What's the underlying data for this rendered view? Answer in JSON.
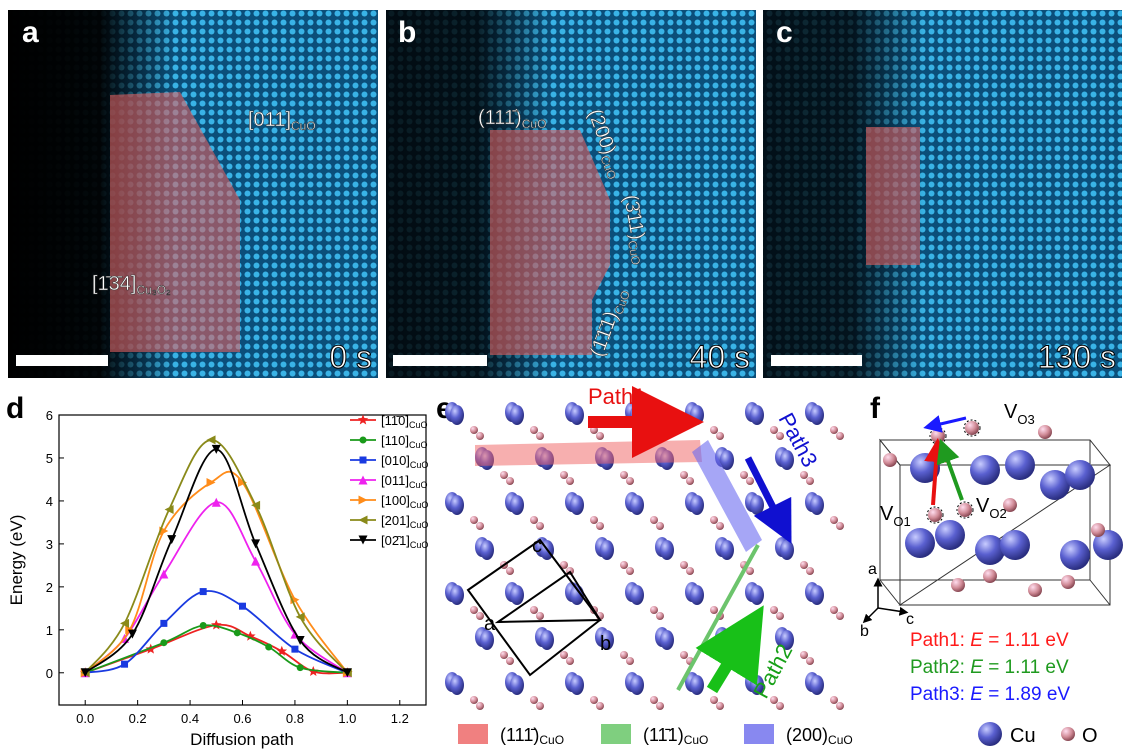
{
  "panels": {
    "a": {
      "label": "a",
      "time": "0 s",
      "annotations": [
        {
          "text": "[011]",
          "sub": "CuO"
        },
        {
          "text": "[1̄3̄4]",
          "sub": "Cu₃O₂"
        }
      ]
    },
    "b": {
      "label": "b",
      "time": "40 s",
      "annotations": [
        {
          "text": "(111̄)",
          "sub": "CuO"
        },
        {
          "text": "(200)",
          "sub": "CuO"
        },
        {
          "text": "(3̄11)",
          "sub": "CuO"
        },
        {
          "text": "(1̄1̄1)",
          "sub": "CuO"
        }
      ]
    },
    "c": {
      "label": "c",
      "time": "130 s"
    },
    "e": {
      "label": "e",
      "paths": [
        "Path1",
        "Path3",
        "Path2"
      ],
      "cell_axes": [
        "c",
        "a",
        "b"
      ],
      "legend": [
        {
          "text": "(111̄)",
          "sub": "CuO",
          "color": "#f08080"
        },
        {
          "text": "(11̄1)",
          "sub": "CuO",
          "color": "#7fcf7f"
        },
        {
          "text": "(200)",
          "sub": "CuO",
          "color": "#8888f0"
        }
      ]
    },
    "f": {
      "label": "f",
      "vacancies": [
        {
          "text": "V",
          "sub": "O3"
        },
        {
          "text": "V",
          "sub": "O1"
        },
        {
          "text": "V",
          "sub": "O2"
        }
      ],
      "axes": [
        "a",
        "b",
        "c"
      ],
      "energies": [
        {
          "path": "Path1:",
          "symbol": "E",
          "value": "= 1.11 eV",
          "color": "#ff1a1a"
        },
        {
          "path": "Path2:",
          "symbol": "E",
          "value": "= 1.11 eV",
          "color": "#1f9a1f"
        },
        {
          "path": "Path3:",
          "symbol": "E",
          "value": "= 1.89 eV",
          "color": "#1a1aff"
        }
      ],
      "legend": [
        "Cu",
        "O"
      ]
    }
  },
  "chart_data": {
    "type": "line",
    "label": "d",
    "xlabel": "Diffusion path",
    "ylabel": "Energy (eV)",
    "xlim": [
      -0.1,
      1.3
    ],
    "ylim": [
      -0.75,
      6
    ],
    "xticks": [
      {
        "value": 0,
        "label": "0.0"
      },
      {
        "value": 0.2,
        "label": "0.2"
      },
      {
        "value": 0.4,
        "label": "0.4"
      },
      {
        "value": 0.6,
        "label": "0.6"
      },
      {
        "value": 0.8,
        "label": "0.8"
      },
      {
        "value": 1,
        "label": "1.0"
      },
      {
        "value": 1.2,
        "label": "1.2"
      }
    ],
    "yticks": [
      0,
      1,
      2,
      3,
      4,
      5,
      6
    ],
    "series": [
      {
        "name": "[11̄0]",
        "sub": "CuO",
        "color": "#ee2222",
        "marker": "star",
        "x": [
          0,
          0.25,
          0.5,
          0.63,
          0.75,
          0.87,
          1.0
        ],
        "values": [
          0,
          0.55,
          1.11,
          0.85,
          0.5,
          0.03,
          0
        ]
      },
      {
        "name": "[110]",
        "sub": "CuO",
        "color": "#1a9a1a",
        "marker": "circle",
        "x": [
          0,
          0.3,
          0.45,
          0.58,
          0.7,
          0.82,
          1.0
        ],
        "values": [
          0,
          0.7,
          1.1,
          0.93,
          0.6,
          0.12,
          0
        ]
      },
      {
        "name": "[010]",
        "sub": "CuO",
        "color": "#1a3ae0",
        "marker": "square",
        "x": [
          0,
          0.15,
          0.3,
          0.45,
          0.6,
          0.8,
          1.0
        ],
        "values": [
          0,
          0.2,
          1.15,
          1.89,
          1.55,
          0.55,
          0
        ]
      },
      {
        "name": "[011]",
        "sub": "CuO",
        "color": "#ee22ee",
        "marker": "up",
        "x": [
          0,
          0.15,
          0.3,
          0.5,
          0.65,
          0.8,
          1.0
        ],
        "values": [
          0,
          0.8,
          2.3,
          3.97,
          2.6,
          0.9,
          0
        ]
      },
      {
        "name": "[100]",
        "sub": "CuO",
        "color": "#ff8c1a",
        "marker": "right",
        "x": [
          0,
          0.17,
          0.3,
          0.48,
          0.6,
          0.8,
          1.0
        ],
        "values": [
          0,
          1.0,
          3.3,
          4.43,
          4.43,
          1.7,
          0
        ]
      },
      {
        "name": "[201]",
        "sub": "CuO",
        "color": "#8a8a1a",
        "marker": "left",
        "x": [
          0,
          0.15,
          0.32,
          0.48,
          0.65,
          0.82,
          1.0
        ],
        "values": [
          0,
          1.15,
          3.8,
          5.42,
          3.9,
          1.3,
          0
        ]
      },
      {
        "name": "[02̄1]",
        "sub": "CuO",
        "color": "#000000",
        "marker": "down",
        "x": [
          0,
          0.18,
          0.33,
          0.5,
          0.65,
          0.82,
          1.0
        ],
        "values": [
          0,
          0.9,
          3.1,
          5.2,
          3.0,
          0.75,
          0
        ]
      }
    ]
  }
}
